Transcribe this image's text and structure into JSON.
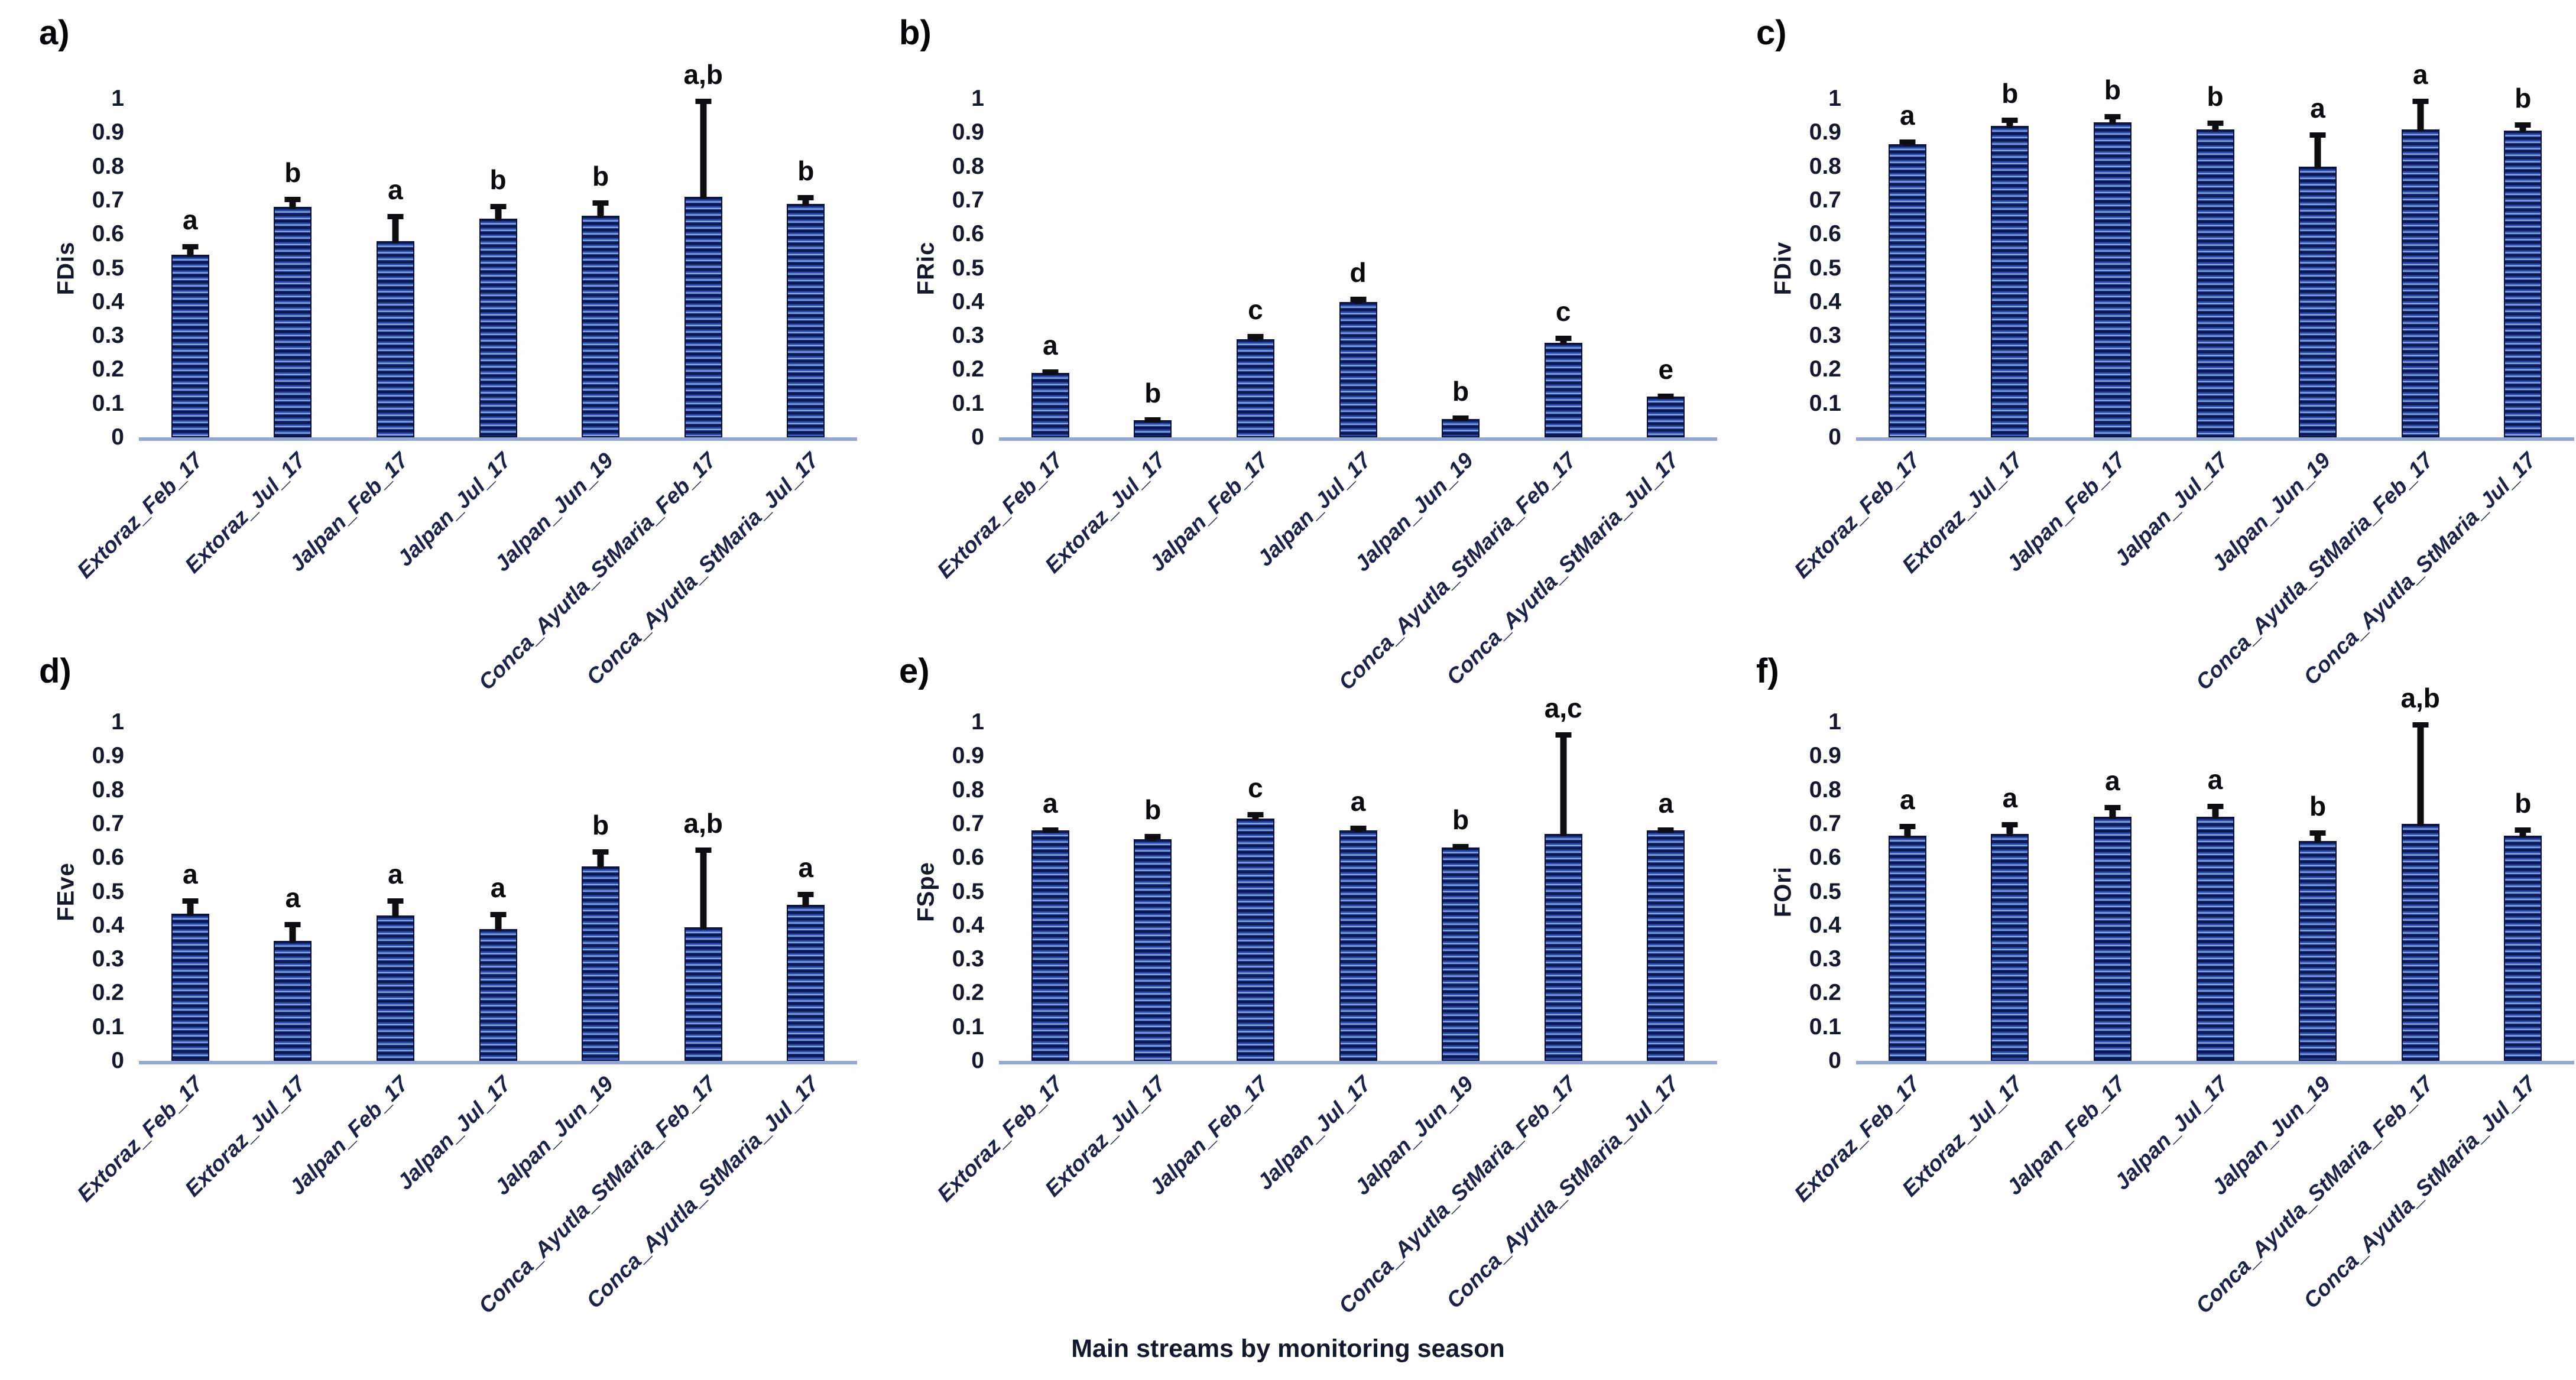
{
  "figure": {
    "xaxis_title": "Main streams by monitoring season",
    "background": "#fefefe",
    "bar_fill_dark": "#0c1850",
    "bar_fill_mid": "#24449f",
    "bar_stripe_light": "#a9c2f2",
    "bar_border": "#0b1240",
    "baseline_color": "#94a7d2",
    "error_bar_color": "#0d0d12",
    "tick_text_color": "#15182b",
    "category_text_color": "#1c2247",
    "yticks": [
      "1",
      "0.9",
      "0.8",
      "0.7",
      "0.6",
      "0.5",
      "0.4",
      "0.3",
      "0.2",
      "0.1",
      "0"
    ]
  },
  "chart_data": [
    {
      "type": "bar",
      "panel_label": "a)",
      "ylabel": "FDis",
      "xlabel": "",
      "ylim": [
        0,
        1
      ],
      "grid": false,
      "legend": "none",
      "categories": [
        "Extoraz_Feb_17",
        "Extoraz_Jul_17",
        "Jalpan_Feb_17",
        "Jalpan_Jul_17",
        "Jalpan_Jun_19",
        "Conca_Ayutla_StMaria_Feb_17",
        "Conca_Ayutla_StMaria_Jul_17"
      ],
      "values": [
        0.54,
        0.68,
        0.58,
        0.645,
        0.655,
        0.71,
        0.69
      ],
      "error_top": [
        0.57,
        0.71,
        0.66,
        0.69,
        0.7,
        1.0,
        0.715
      ],
      "sig_letters": [
        "a",
        "b",
        "a",
        "b",
        "b",
        "a,b",
        "b"
      ]
    },
    {
      "type": "bar",
      "panel_label": "b)",
      "ylabel": "FRic",
      "xlabel": "",
      "ylim": [
        0,
        1
      ],
      "grid": false,
      "legend": "none",
      "categories": [
        "Extoraz_Feb_17",
        "Extoraz_Jul_17",
        "Jalpan_Feb_17",
        "Jalpan_Jul_17",
        "Jalpan_Jun_19",
        "Conca_Ayutla_StMaria_Feb_17",
        "Conca_Ayutla_StMaria_Jul_17"
      ],
      "values": [
        0.19,
        0.05,
        0.29,
        0.4,
        0.055,
        0.28,
        0.12
      ],
      "error_top": [
        0.2,
        0.06,
        0.305,
        0.415,
        0.065,
        0.3,
        0.13
      ],
      "sig_letters": [
        "a",
        "b",
        "c",
        "d",
        "b",
        "c",
        "e"
      ]
    },
    {
      "type": "bar",
      "panel_label": "c)",
      "ylabel": "FDiv",
      "xlabel": "",
      "ylim": [
        0,
        1
      ],
      "grid": false,
      "legend": "none",
      "categories": [
        "Extoraz_Feb_17",
        "Extoraz_Jul_17",
        "Jalpan_Feb_17",
        "Jalpan_Jul_17",
        "Jalpan_Jun_19",
        "Conca_Ayutla_StMaria_Feb_17",
        "Conca_Ayutla_StMaria_Jul_17"
      ],
      "values": [
        0.865,
        0.92,
        0.93,
        0.91,
        0.8,
        0.91,
        0.905
      ],
      "error_top": [
        0.88,
        0.945,
        0.955,
        0.935,
        0.9,
        1.0,
        0.93
      ],
      "sig_letters": [
        "a",
        "b",
        "b",
        "b",
        "a",
        "a",
        "b"
      ]
    },
    {
      "type": "bar",
      "panel_label": "d)",
      "ylabel": "FEve",
      "xlabel": "",
      "ylim": [
        0,
        1
      ],
      "grid": false,
      "legend": "none",
      "categories": [
        "Extoraz_Feb_17",
        "Extoraz_Jul_17",
        "Jalpan_Feb_17",
        "Jalpan_Jul_17",
        "Jalpan_Jun_19",
        "Conca_Ayutla_StMaria_Feb_17",
        "Conca_Ayutla_StMaria_Jul_17"
      ],
      "values": [
        0.435,
        0.355,
        0.43,
        0.39,
        0.575,
        0.395,
        0.46
      ],
      "error_top": [
        0.48,
        0.41,
        0.48,
        0.44,
        0.625,
        0.63,
        0.5
      ],
      "sig_letters": [
        "a",
        "a",
        "a",
        "a",
        "b",
        "a,b",
        "a"
      ]
    },
    {
      "type": "bar",
      "panel_label": "e)",
      "ylabel": "FSpe",
      "xlabel": "Main streams by monitoring season",
      "ylim": [
        0,
        1
      ],
      "grid": false,
      "legend": "none",
      "categories": [
        "Extoraz_Feb_17",
        "Extoraz_Jul_17",
        "Jalpan_Feb_17",
        "Jalpan_Jul_17",
        "Jalpan_Jun_19",
        "Conca_Ayutla_StMaria_Feb_17",
        "Conca_Ayutla_StMaria_Jul_17"
      ],
      "values": [
        0.68,
        0.655,
        0.715,
        0.68,
        0.63,
        0.67,
        0.68
      ],
      "error_top": [
        0.69,
        0.67,
        0.735,
        0.695,
        0.64,
        0.97,
        0.69
      ],
      "sig_letters": [
        "a",
        "b",
        "c",
        "a",
        "b",
        "a,c",
        "a"
      ]
    },
    {
      "type": "bar",
      "panel_label": "f)",
      "ylabel": "FOri",
      "xlabel": "",
      "ylim": [
        0,
        1
      ],
      "grid": false,
      "legend": "none",
      "categories": [
        "Extoraz_Feb_17",
        "Extoraz_Jul_17",
        "Jalpan_Feb_17",
        "Jalpan_Jul_17",
        "Jalpan_Jun_19",
        "Conca_Ayutla_StMaria_Feb_17",
        "Conca_Ayutla_StMaria_Jul_17"
      ],
      "values": [
        0.665,
        0.67,
        0.72,
        0.72,
        0.65,
        0.7,
        0.665
      ],
      "error_top": [
        0.7,
        0.705,
        0.755,
        0.76,
        0.68,
        1.0,
        0.69
      ],
      "sig_letters": [
        "a",
        "a",
        "a",
        "a",
        "b",
        "a,b",
        "b"
      ]
    }
  ]
}
